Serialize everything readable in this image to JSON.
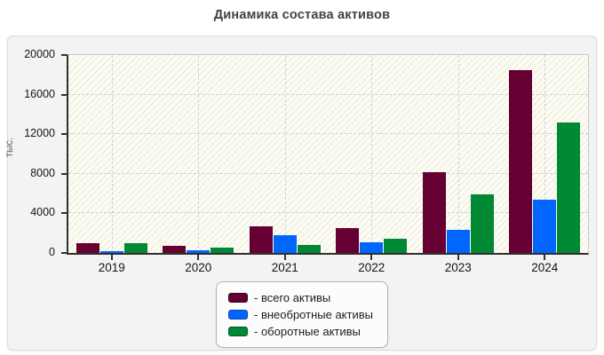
{
  "header": {
    "title": "Динамика состава активов"
  },
  "y_axis": {
    "label": "тыс."
  },
  "chart_data": {
    "type": "bar",
    "title": "Динамика состава активов",
    "xlabel": "",
    "ylabel": "тыс.",
    "categories": [
      "2019",
      "2020",
      "2021",
      "2022",
      "2023",
      "2024"
    ],
    "series": [
      {
        "key": "total",
        "name": "- всего активы",
        "color": "#660033",
        "border": "#3d0020",
        "values": [
          1000,
          750,
          2700,
          2500,
          8200,
          18500
        ]
      },
      {
        "key": "noncurrent",
        "name": "- внеобротные активы",
        "color": "#0066ff",
        "border": "#0046b8",
        "values": [
          150,
          250,
          1800,
          1100,
          2300,
          5350
        ]
      },
      {
        "key": "current",
        "name": "- оборотные активы",
        "color": "#008833",
        "border": "#005c22",
        "values": [
          950,
          550,
          850,
          1450,
          5900,
          13150
        ]
      }
    ],
    "ylim": [
      0,
      20000
    ],
    "yticks": [
      0,
      4000,
      8000,
      12000,
      16000,
      20000
    ],
    "grid": "dashed horizontal and vertical",
    "legend_position": "bottom-center",
    "plot_background": "#fcfcf3 with light diagonal hatch",
    "axis_color": "#2f2f2f",
    "grid_color": "#cfcfcf",
    "title_color": "#424242"
  }
}
